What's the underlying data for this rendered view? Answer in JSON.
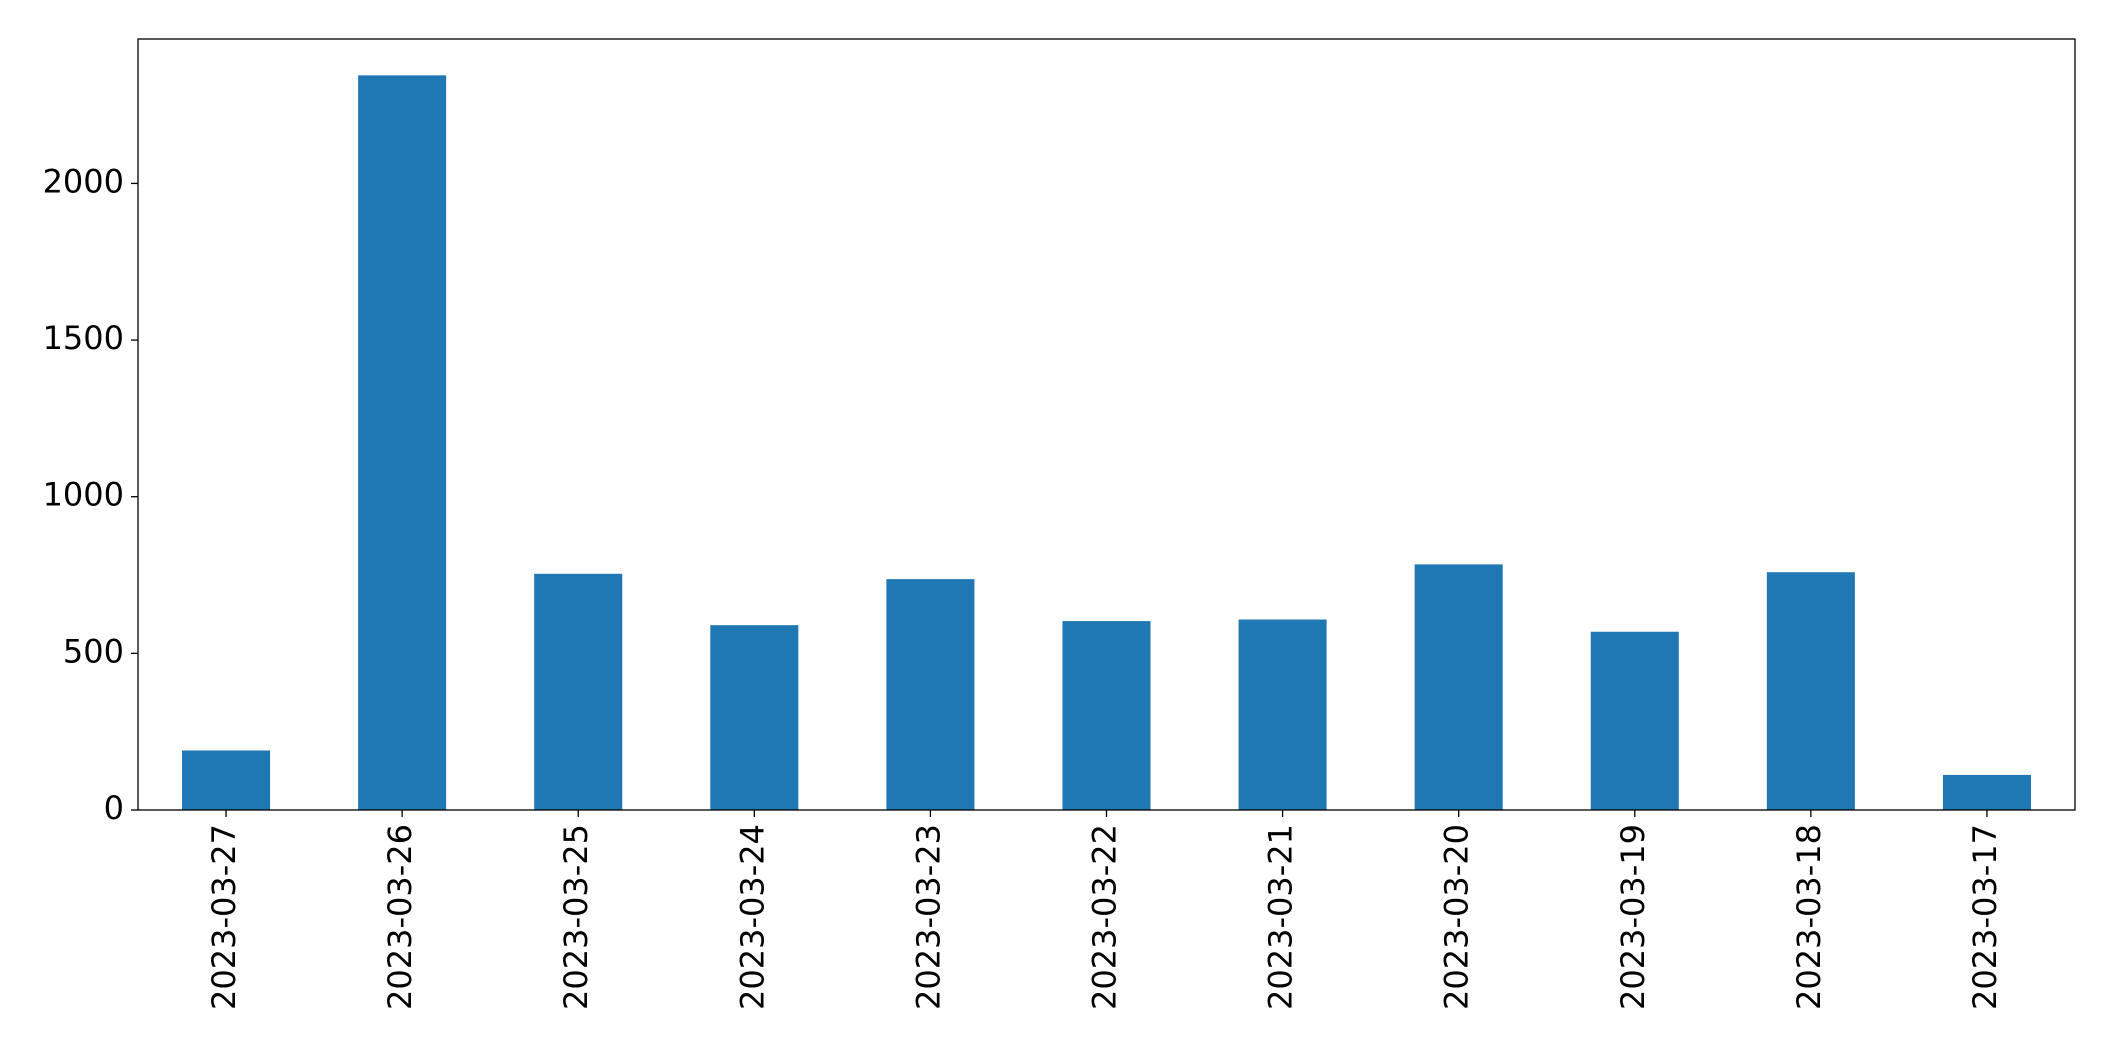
{
  "chart_data": {
    "type": "bar",
    "categories": [
      "2023-03-27",
      "2023-03-26",
      "2023-03-25",
      "2023-03-24",
      "2023-03-23",
      "2023-03-22",
      "2023-03-21",
      "2023-03-20",
      "2023-03-19",
      "2023-03-18",
      "2023-03-17"
    ],
    "values": [
      190,
      2345,
      754,
      590,
      737,
      603,
      608,
      784,
      569,
      759,
      112
    ],
    "color": "#1f77b4",
    "ylim": [
      0,
      2461
    ],
    "yticks": [
      0,
      500,
      1000,
      1500,
      2000
    ],
    "grid": false
  }
}
